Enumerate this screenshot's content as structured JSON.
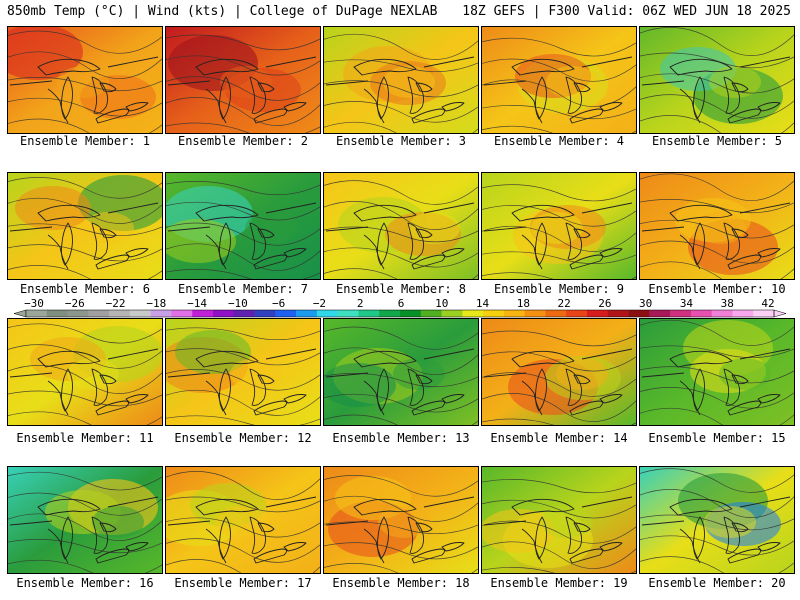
{
  "header": {
    "left_title": "850mb Temp (°C) | Wind (kts) | College of DuPage NEXLAB",
    "right_title": "18Z GEFS | F300 Valid: 06Z WED JUN 18 2025"
  },
  "colorbar": {
    "ticks": [
      "−30",
      "−26",
      "−22",
      "−18",
      "−14",
      "−10",
      "−6",
      "−2",
      "2",
      "6",
      "10",
      "14",
      "18",
      "22",
      "26",
      "30",
      "34",
      "38",
      "42"
    ],
    "colors": [
      "#9aa69a",
      "#7f8f7f",
      "#8c968c",
      "#a0a0a0",
      "#b5b5b5",
      "#c9c9c9",
      "#c8a0e8",
      "#e36fe8",
      "#c020d8",
      "#9010c8",
      "#6020b0",
      "#3040c0",
      "#2060f0",
      "#1a9bf0",
      "#30d8e8",
      "#3ee0c0",
      "#20c888",
      "#10a848",
      "#089028",
      "#50b020",
      "#9ad020",
      "#e6e81a",
      "#f5d010",
      "#f8b410",
      "#f59010",
      "#ee6a10",
      "#e84418",
      "#d61c1c",
      "#b01418",
      "#8c0e10",
      "#a81858",
      "#d03080",
      "#e850b0",
      "#f080d8",
      "#f8a8ec",
      "#fbd0f4"
    ]
  },
  "members": [
    {
      "label": "Ensemble Member: 1",
      "palette": [
        "#f2a31a",
        "#e8561c",
        "#d82a1e",
        "#ee6e1a",
        "#f5b318"
      ]
    },
    {
      "label": "Ensemble Member: 2",
      "palette": [
        "#e6601a",
        "#c21a1e",
        "#a0141c",
        "#dc401a",
        "#f08c18"
      ]
    },
    {
      "label": "Ensemble Member: 3",
      "palette": [
        "#f5c518",
        "#b8d41c",
        "#f0a818",
        "#e87a1a",
        "#d4dc1c"
      ]
    },
    {
      "label": "Ensemble Member: 4",
      "palette": [
        "#f5c518",
        "#ee8a18",
        "#d8dc1a",
        "#e8541c",
        "#f3b018"
      ]
    },
    {
      "label": "Ensemble Member: 5",
      "palette": [
        "#b8d41c",
        "#62b82a",
        "#2a9c3c",
        "#3cc8b4",
        "#e8de18"
      ]
    },
    {
      "label": "Ensemble Member: 6",
      "palette": [
        "#f5c518",
        "#b8d41c",
        "#2a9c3c",
        "#ee8a18",
        "#e8de18"
      ]
    },
    {
      "label": "Ensemble Member: 7",
      "palette": [
        "#2a9c3c",
        "#58b82a",
        "#38d0b8",
        "#9ccc1e",
        "#189048"
      ]
    },
    {
      "label": "Ensemble Member: 8",
      "palette": [
        "#e8de18",
        "#f5c518",
        "#b8d41c",
        "#ee8a18",
        "#7ec024"
      ]
    },
    {
      "label": "Ensemble Member: 9",
      "palette": [
        "#e8de18",
        "#b8d41c",
        "#f5c518",
        "#ee8a18",
        "#58b82a"
      ]
    },
    {
      "label": "Ensemble Member: 10",
      "palette": [
        "#f3b018",
        "#ee8a18",
        "#e8541c",
        "#f5c518",
        "#e8de18"
      ]
    },
    {
      "label": "Ensemble Member: 11",
      "palette": [
        "#e8de18",
        "#f5c518",
        "#b8d41c",
        "#f0a818",
        "#ee8a18"
      ]
    },
    {
      "label": "Ensemble Member: 12",
      "palette": [
        "#f5c518",
        "#b8d41c",
        "#ee8a18",
        "#62b82a",
        "#e8de18"
      ]
    },
    {
      "label": "Ensemble Member: 13",
      "palette": [
        "#2a9c3c",
        "#58b82a",
        "#9ccc1e",
        "#189048",
        "#7ec024"
      ]
    },
    {
      "label": "Ensemble Member: 14",
      "palette": [
        "#f3b018",
        "#ee8a18",
        "#e8541c",
        "#b8d41c",
        "#58b82a"
      ]
    },
    {
      "label": "Ensemble Member: 15",
      "palette": [
        "#58b82a",
        "#2a9c3c",
        "#b8d41c",
        "#e8de18",
        "#7ec024"
      ]
    },
    {
      "label": "Ensemble Member: 16",
      "palette": [
        "#2a9c3c",
        "#38d0b8",
        "#f5c518",
        "#b8d41c",
        "#58b82a"
      ]
    },
    {
      "label": "Ensemble Member: 17",
      "palette": [
        "#f5c518",
        "#ee8a18",
        "#e8de18",
        "#b8d41c",
        "#f3b018"
      ]
    },
    {
      "label": "Ensemble Member: 18",
      "palette": [
        "#f3b018",
        "#ee8a18",
        "#e8541c",
        "#f5c518",
        "#e8de18"
      ]
    },
    {
      "label": "Ensemble Member: 19",
      "palette": [
        "#b8d41c",
        "#58b82a",
        "#e8de18",
        "#f5c518",
        "#ee8a18"
      ]
    },
    {
      "label": "Ensemble Member: 20",
      "palette": [
        "#e8de18",
        "#38d0b8",
        "#2a9c3c",
        "#1a7cf0",
        "#b8d41c"
      ]
    }
  ]
}
